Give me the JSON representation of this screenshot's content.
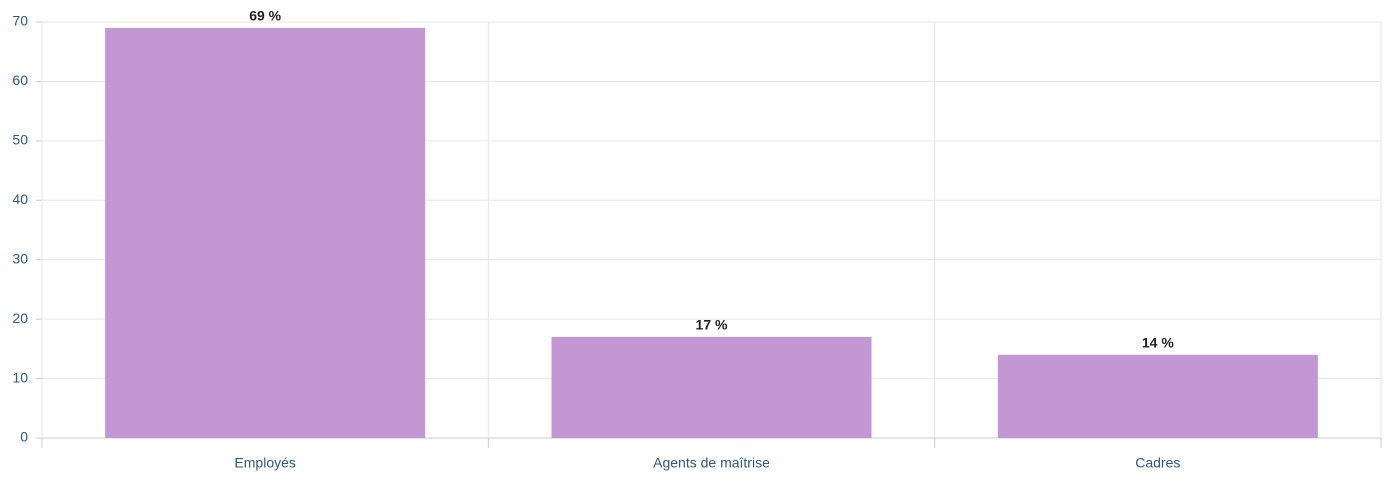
{
  "chart_data": {
    "type": "bar",
    "categories": [
      "Employés",
      "Agents de maîtrise",
      "Cadres"
    ],
    "values": [
      69,
      17,
      14
    ],
    "value_labels": [
      "69 %",
      "17 %",
      "14 %"
    ],
    "color": "#c397d4",
    "ylim": [
      0,
      70
    ],
    "yticks": [
      0,
      10,
      20,
      30,
      40,
      50,
      60,
      70
    ],
    "grid": true
  }
}
